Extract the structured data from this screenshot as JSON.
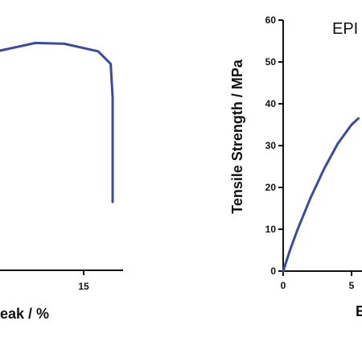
{
  "chart_data": [
    {
      "type": "line",
      "xlabel": "eak / %",
      "ylabel": "",
      "xticks": [
        "15"
      ],
      "series": [
        {
          "x": [
            1,
            4,
            8,
            10,
            13,
            16.5,
            17.8,
            18,
            18,
            18
          ],
          "y": [
            52,
            55,
            57,
            58,
            57.8,
            56,
            53,
            45,
            30,
            20
          ]
        }
      ]
    },
    {
      "type": "line",
      "annotation": "EPI",
      "xlabel": "E",
      "ylabel": "Tensile Strength / MPa",
      "ylim": [
        0,
        60
      ],
      "yticks": [
        "0",
        "10",
        "20",
        "30",
        "40",
        "50",
        "60"
      ],
      "xticks": [
        "0",
        "5"
      ],
      "series": [
        {
          "x": [
            0,
            0.5,
            1,
            2,
            3,
            4,
            5,
            5.5
          ],
          "y": [
            0,
            5,
            9.5,
            17.5,
            24.5,
            30.5,
            35,
            36.5
          ]
        }
      ]
    }
  ]
}
